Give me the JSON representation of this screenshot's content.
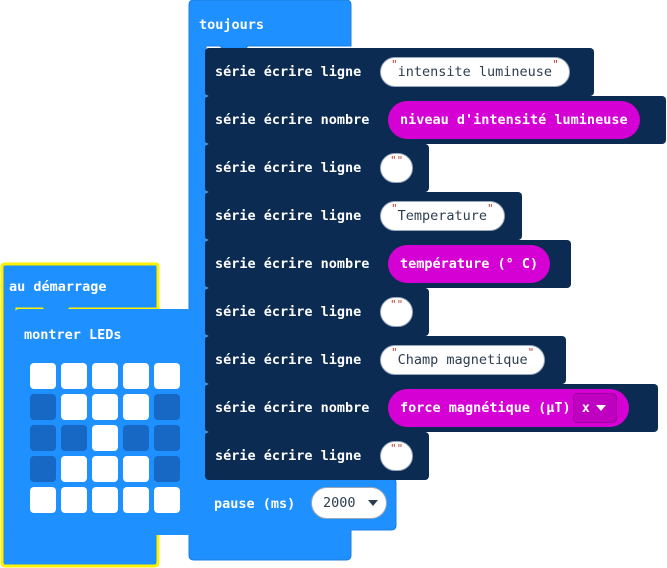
{
  "colors": {
    "block_blue": "#1e90ff",
    "block_navy": "#0b2b52",
    "reporter_magenta": "#d400d4",
    "highlight_yellow": "#fff000",
    "led_off": "#1668c4",
    "led_on": "#ffffff"
  },
  "start_block": {
    "label": "au démarrage",
    "show_leds": {
      "label": "montrer LEDs",
      "grid": [
        [
          1,
          1,
          1,
          1,
          1
        ],
        [
          0,
          1,
          1,
          1,
          0
        ],
        [
          0,
          0,
          1,
          0,
          0
        ],
        [
          0,
          1,
          1,
          1,
          0
        ],
        [
          1,
          1,
          1,
          1,
          1
        ]
      ]
    }
  },
  "forever_block": {
    "label": "toujours",
    "statements": [
      {
        "label": "série écrire ligne",
        "kind": "string",
        "value": "intensite lumineuse"
      },
      {
        "label": "série écrire nombre",
        "kind": "reporter",
        "value": "niveau d'intensité lumineuse"
      },
      {
        "label": "série écrire ligne",
        "kind": "string",
        "value": ""
      },
      {
        "label": "série écrire ligne",
        "kind": "string",
        "value": "Temperature"
      },
      {
        "label": "série écrire nombre",
        "kind": "reporter",
        "value": "température (° C)"
      },
      {
        "label": "série écrire ligne",
        "kind": "string",
        "value": ""
      },
      {
        "label": "série écrire ligne",
        "kind": "string",
        "value": "Champ magnetique"
      },
      {
        "label": "série écrire nombre",
        "kind": "reporter",
        "value": "force magnétique (µT)",
        "dropdown": "x"
      },
      {
        "label": "série écrire ligne",
        "kind": "string",
        "value": ""
      }
    ],
    "pause": {
      "label": "pause (ms)",
      "value": "2000"
    }
  }
}
